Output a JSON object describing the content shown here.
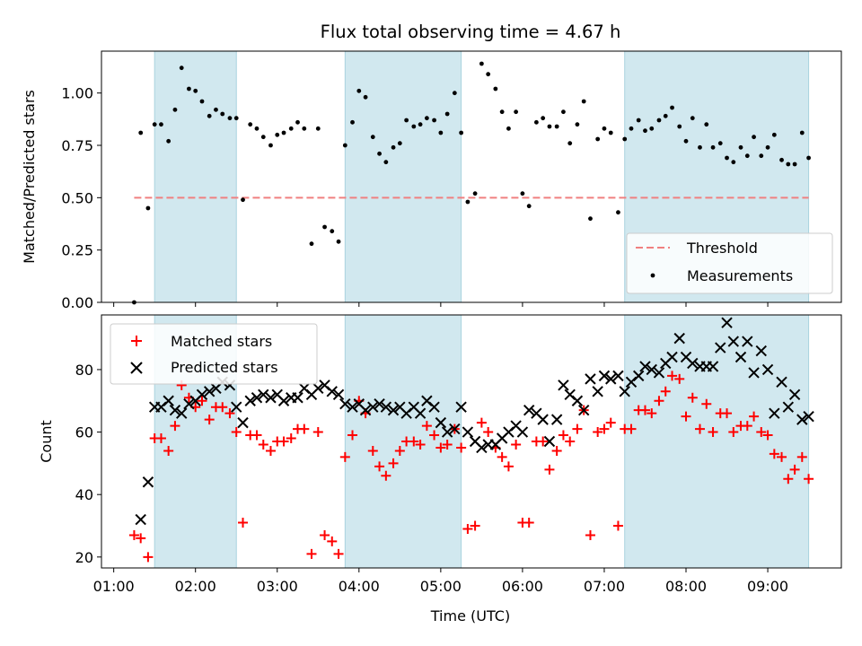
{
  "chart_data": {
    "title": "Flux total observing time = 4.67 h",
    "xlabel": "Time (UTC)",
    "x_ticks": [
      "01:00",
      "02:00",
      "03:00",
      "04:00",
      "05:00",
      "06:00",
      "07:00",
      "08:00",
      "09:00"
    ],
    "x_tick_values": [
      1,
      2,
      3,
      4,
      5,
      6,
      7,
      8,
      9
    ],
    "xlim": [
      0.85,
      9.9
    ],
    "shaded_intervals": [
      [
        1.5,
        2.5
      ],
      [
        3.83,
        5.25
      ],
      [
        7.25,
        9.5
      ]
    ],
    "shade_color": "#d1e8ef",
    "panels": [
      {
        "id": "ratio",
        "type": "scatter",
        "ylabel": "Matched/Predicted stars",
        "ylim": [
          0,
          1.2
        ],
        "y_ticks": [
          "0.00",
          "0.25",
          "0.50",
          "0.75",
          "1.00"
        ],
        "y_tick_values": [
          0,
          0.25,
          0.5,
          0.75,
          1.0
        ],
        "legend_position": "lower-right",
        "threshold": {
          "name": "Threshold",
          "value": 0.5,
          "x_range": [
            1.25,
            9.5
          ],
          "color": "#f08080"
        },
        "series": [
          {
            "name": "Measurements",
            "marker": "dot",
            "color": "#000000",
            "x": [
              1.25,
              1.33,
              1.42,
              1.5,
              1.58,
              1.67,
              1.75,
              1.83,
              1.92,
              2.0,
              2.08,
              2.17,
              2.25,
              2.33,
              2.42,
              2.5,
              2.58,
              2.67,
              2.75,
              2.83,
              2.92,
              3.0,
              3.08,
              3.17,
              3.25,
              3.33,
              3.42,
              3.5,
              3.58,
              3.67,
              3.75,
              3.83,
              3.92,
              4.0,
              4.08,
              4.17,
              4.25,
              4.33,
              4.42,
              4.5,
              4.58,
              4.67,
              4.75,
              4.83,
              4.92,
              5.0,
              5.08,
              5.17,
              5.25,
              5.33,
              5.42,
              5.5,
              5.58,
              5.67,
              5.75,
              5.83,
              5.92,
              6.0,
              6.08,
              6.17,
              6.25,
              6.33,
              6.42,
              6.5,
              6.58,
              6.67,
              6.75,
              6.83,
              6.92,
              7.0,
              7.08,
              7.17,
              7.25,
              7.33,
              7.42,
              7.5,
              7.58,
              7.67,
              7.75,
              7.83,
              7.92,
              8.0,
              8.08,
              8.17,
              8.25,
              8.33,
              8.42,
              8.5,
              8.58,
              8.67,
              8.75,
              8.83,
              8.92,
              9.0,
              9.08,
              9.17,
              9.25,
              9.33,
              9.42,
              9.5
            ],
            "y": [
              0.0,
              0.81,
              0.45,
              0.85,
              0.85,
              0.77,
              0.92,
              1.12,
              1.02,
              1.01,
              0.96,
              0.89,
              0.92,
              0.9,
              0.88,
              0.88,
              0.49,
              0.85,
              0.83,
              0.79,
              0.75,
              0.8,
              0.81,
              0.83,
              0.86,
              0.83,
              0.28,
              0.83,
              0.36,
              0.34,
              0.29,
              0.75,
              0.86,
              1.01,
              0.98,
              0.79,
              0.71,
              0.67,
              0.74,
              0.76,
              0.87,
              0.84,
              0.85,
              0.88,
              0.87,
              0.81,
              0.9,
              1.0,
              0.81,
              0.48,
              0.52,
              1.14,
              1.09,
              1.02,
              0.91,
              0.83,
              0.91,
              0.52,
              0.46,
              0.86,
              0.88,
              0.84,
              0.84,
              0.91,
              0.76,
              0.85,
              0.96,
              0.4,
              0.78,
              0.83,
              0.81,
              0.43,
              0.78,
              0.83,
              0.87,
              0.82,
              0.83,
              0.87,
              0.89,
              0.93,
              0.84,
              0.77,
              0.88,
              0.74,
              0.85,
              0.74,
              0.76,
              0.69,
              0.67,
              0.74,
              0.7,
              0.79,
              0.7,
              0.74,
              0.8,
              0.68,
              0.66,
              0.66,
              0.81,
              0.69
            ]
          }
        ]
      },
      {
        "id": "count",
        "type": "scatter",
        "ylabel": "Count",
        "ylim": [
          16.5,
          97.5
        ],
        "y_ticks": [
          "20",
          "40",
          "60",
          "80"
        ],
        "y_tick_values": [
          20,
          40,
          60,
          80
        ],
        "legend_position": "upper-left",
        "series": [
          {
            "name": "Matched stars",
            "marker": "plus",
            "color": "#ff0000",
            "x": [
              1.25,
              1.33,
              1.42,
              1.5,
              1.58,
              1.67,
              1.75,
              1.83,
              1.92,
              2.0,
              2.08,
              2.17,
              2.25,
              2.33,
              2.42,
              2.5,
              2.58,
              2.67,
              2.75,
              2.83,
              2.92,
              3.0,
              3.08,
              3.17,
              3.25,
              3.33,
              3.42,
              3.5,
              3.58,
              3.67,
              3.75,
              3.83,
              3.92,
              4.0,
              4.08,
              4.17,
              4.25,
              4.33,
              4.42,
              4.5,
              4.58,
              4.67,
              4.75,
              4.83,
              4.92,
              5.0,
              5.08,
              5.17,
              5.25,
              5.33,
              5.42,
              5.5,
              5.58,
              5.67,
              5.75,
              5.83,
              5.92,
              6.0,
              6.08,
              6.17,
              6.25,
              6.33,
              6.42,
              6.5,
              6.58,
              6.67,
              6.75,
              6.83,
              6.92,
              7.0,
              7.08,
              7.17,
              7.25,
              7.33,
              7.42,
              7.5,
              7.58,
              7.67,
              7.75,
              7.83,
              7.92,
              8.0,
              8.08,
              8.17,
              8.25,
              8.33,
              8.42,
              8.5,
              8.58,
              8.67,
              8.75,
              8.83,
              8.92,
              9.0,
              9.08,
              9.17,
              9.25,
              9.33,
              9.42,
              9.5
            ],
            "y": [
              27,
              26,
              20,
              58,
              58,
              54,
              62,
              75,
              71,
              68,
              70,
              64,
              68,
              68,
              66,
              60,
              31,
              59,
              59,
              56,
              54,
              57,
              57,
              58,
              61,
              61,
              21,
              60,
              27,
              25,
              21,
              52,
              59,
              70,
              66,
              54,
              49,
              46,
              50,
              54,
              57,
              57,
              56,
              62,
              59,
              55,
              56,
              61,
              55,
              29,
              30,
              63,
              60,
              55,
              52,
              49,
              56,
              31,
              31,
              57,
              57,
              48,
              54,
              59,
              57,
              61,
              67,
              27,
              60,
              61,
              63,
              30,
              61,
              61,
              67,
              67,
              66,
              70,
              73,
              78,
              77,
              65,
              71,
              61,
              69,
              60,
              66,
              66,
              60,
              62,
              62,
              65,
              60,
              59,
              53,
              52,
              45,
              48,
              52,
              45
            ]
          },
          {
            "name": "Predicted stars",
            "marker": "x",
            "color": "#000000",
            "x": [
              1.33,
              1.42,
              1.5,
              1.58,
              1.67,
              1.75,
              1.83,
              1.92,
              2.0,
              2.08,
              2.17,
              2.25,
              2.33,
              2.42,
              2.5,
              2.58,
              2.67,
              2.75,
              2.83,
              2.92,
              3.0,
              3.08,
              3.17,
              3.25,
              3.33,
              3.42,
              3.5,
              3.58,
              3.67,
              3.75,
              3.83,
              3.92,
              4.0,
              4.08,
              4.17,
              4.25,
              4.33,
              4.42,
              4.5,
              4.58,
              4.67,
              4.75,
              4.83,
              4.92,
              5.0,
              5.08,
              5.17,
              5.25,
              5.33,
              5.42,
              5.5,
              5.58,
              5.67,
              5.75,
              5.83,
              5.92,
              6.0,
              6.08,
              6.17,
              6.25,
              6.33,
              6.42,
              6.5,
              6.58,
              6.67,
              6.75,
              6.83,
              6.92,
              7.0,
              7.08,
              7.17,
              7.25,
              7.33,
              7.42,
              7.5,
              7.58,
              7.67,
              7.75,
              7.83,
              7.92,
              8.0,
              8.08,
              8.17,
              8.25,
              8.33,
              8.42,
              8.5,
              8.58,
              8.67,
              8.75,
              8.83,
              8.92,
              9.0,
              9.08,
              9.17,
              9.25,
              9.33,
              9.42,
              9.5
            ],
            "y": [
              32,
              44,
              68,
              68,
              70,
              67,
              66,
              69,
              70,
              72,
              73,
              74,
              76,
              75,
              68,
              63,
              70,
              71,
              72,
              71,
              72,
              70,
              71,
              71,
              74,
              72,
              74,
              75,
              73,
              72,
              69,
              68,
              69,
              67,
              68,
              69,
              68,
              67,
              68,
              66,
              68,
              66,
              70,
              68,
              63,
              60,
              61,
              68,
              60,
              57,
              55,
              56,
              56,
              58,
              60,
              62,
              60,
              67,
              66,
              64,
              57,
              64,
              75,
              72,
              70,
              67,
              77,
              73,
              78,
              77,
              78,
              73,
              76,
              78,
              81,
              80,
              79,
              82,
              84,
              90,
              84,
              82,
              81,
              81,
              81,
              87,
              95,
              89,
              84,
              89,
              79,
              86,
              80,
              66,
              76,
              68,
              72,
              64,
              65
            ]
          }
        ]
      }
    ]
  }
}
